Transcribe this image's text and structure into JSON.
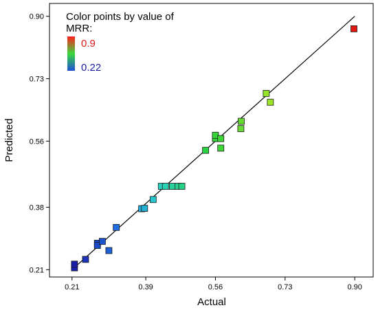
{
  "chart_data": {
    "type": "scatter",
    "xlabel": "Actual",
    "ylabel": "Predicted",
    "xlim": [
      0.155,
      0.945
    ],
    "ylim": [
      0.19,
      0.935
    ],
    "x_ticks": [
      "0.21",
      "0.39",
      "0.56",
      "0.73",
      "0.90"
    ],
    "y_ticks": [
      "0.21",
      "0.38",
      "0.56",
      "0.73",
      "0.90"
    ],
    "grid": false,
    "fit_line": {
      "from": [
        0.21,
        0.21
      ],
      "to": [
        0.9,
        0.9
      ]
    },
    "legend": {
      "title": "Color points by value of MRR:",
      "max_label": "0.9",
      "min_label": "0.22",
      "position": "top-left",
      "gradient_colors": [
        "#ff2020",
        "#3bd83b",
        "#1e50d8"
      ],
      "max_color": "#e01818",
      "min_color": "#1a1aa8"
    },
    "points": [
      {
        "x": 0.216,
        "y": 0.215
      },
      {
        "x": 0.216,
        "y": 0.225
      },
      {
        "x": 0.243,
        "y": 0.238
      },
      {
        "x": 0.272,
        "y": 0.282
      },
      {
        "x": 0.272,
        "y": 0.276
      },
      {
        "x": 0.284,
        "y": 0.287
      },
      {
        "x": 0.3,
        "y": 0.262
      },
      {
        "x": 0.318,
        "y": 0.325
      },
      {
        "x": 0.38,
        "y": 0.376
      },
      {
        "x": 0.387,
        "y": 0.377
      },
      {
        "x": 0.408,
        "y": 0.401
      },
      {
        "x": 0.428,
        "y": 0.437
      },
      {
        "x": 0.438,
        "y": 0.437
      },
      {
        "x": 0.455,
        "y": 0.437
      },
      {
        "x": 0.469,
        "y": 0.437
      },
      {
        "x": 0.478,
        "y": 0.437
      },
      {
        "x": 0.536,
        "y": 0.535
      },
      {
        "x": 0.56,
        "y": 0.567
      },
      {
        "x": 0.56,
        "y": 0.576
      },
      {
        "x": 0.573,
        "y": 0.567
      },
      {
        "x": 0.573,
        "y": 0.541
      },
      {
        "x": 0.622,
        "y": 0.594
      },
      {
        "x": 0.623,
        "y": 0.614
      },
      {
        "x": 0.684,
        "y": 0.69
      },
      {
        "x": 0.694,
        "y": 0.666
      },
      {
        "x": 0.898,
        "y": 0.866
      }
    ]
  }
}
